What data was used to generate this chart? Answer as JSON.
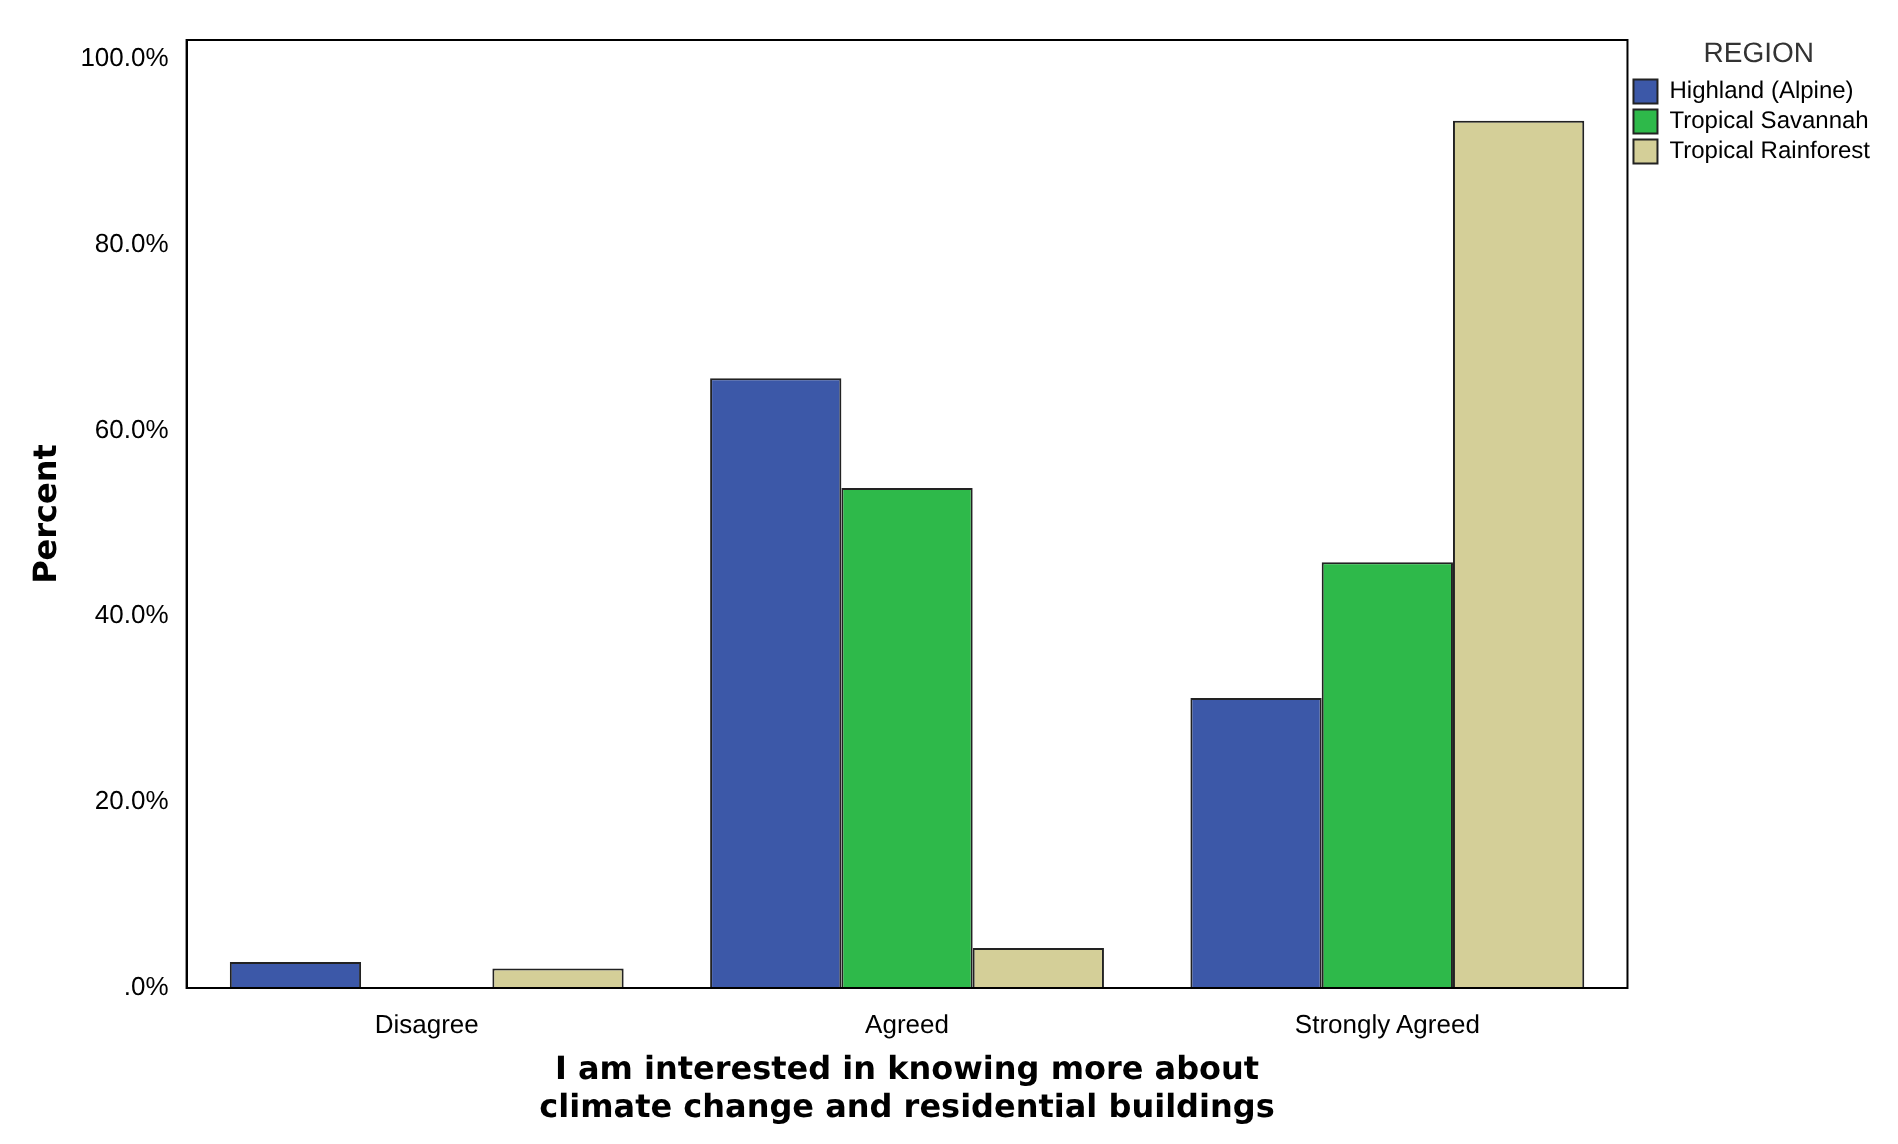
{
  "chart_data": {
    "type": "bar",
    "xlabel": "I am interested in knowing more about climate change and residential buildings",
    "ylabel": "Percent",
    "legend_title": "REGION",
    "legend": "top right",
    "grid": false,
    "categories": [
      "Disagree",
      "Agreed",
      "Strongly Agreed"
    ],
    "series": [
      {
        "name": "Highland (Alpine)",
        "color": "#3c58a8",
        "values": [
          2.8,
          65.6,
          31.2
        ]
      },
      {
        "name": "Tropical Savannah",
        "color": "#2eb94a",
        "values": [
          0,
          53.8,
          45.8
        ]
      },
      {
        "name": "Tropical Rainforest",
        "color": "#d4cf98",
        "values": [
          2.1,
          4.3,
          93.3
        ]
      }
    ],
    "ylim": [
      0,
      102
    ],
    "yticks": [
      {
        "value": 0,
        "label": ".0%"
      },
      {
        "value": 20,
        "label": "20.0%"
      },
      {
        "value": 40,
        "label": "40.0%"
      },
      {
        "value": 60,
        "label": "60.0%"
      },
      {
        "value": 80,
        "label": "80.0%"
      },
      {
        "value": 100,
        "label": "100.0%"
      }
    ]
  }
}
